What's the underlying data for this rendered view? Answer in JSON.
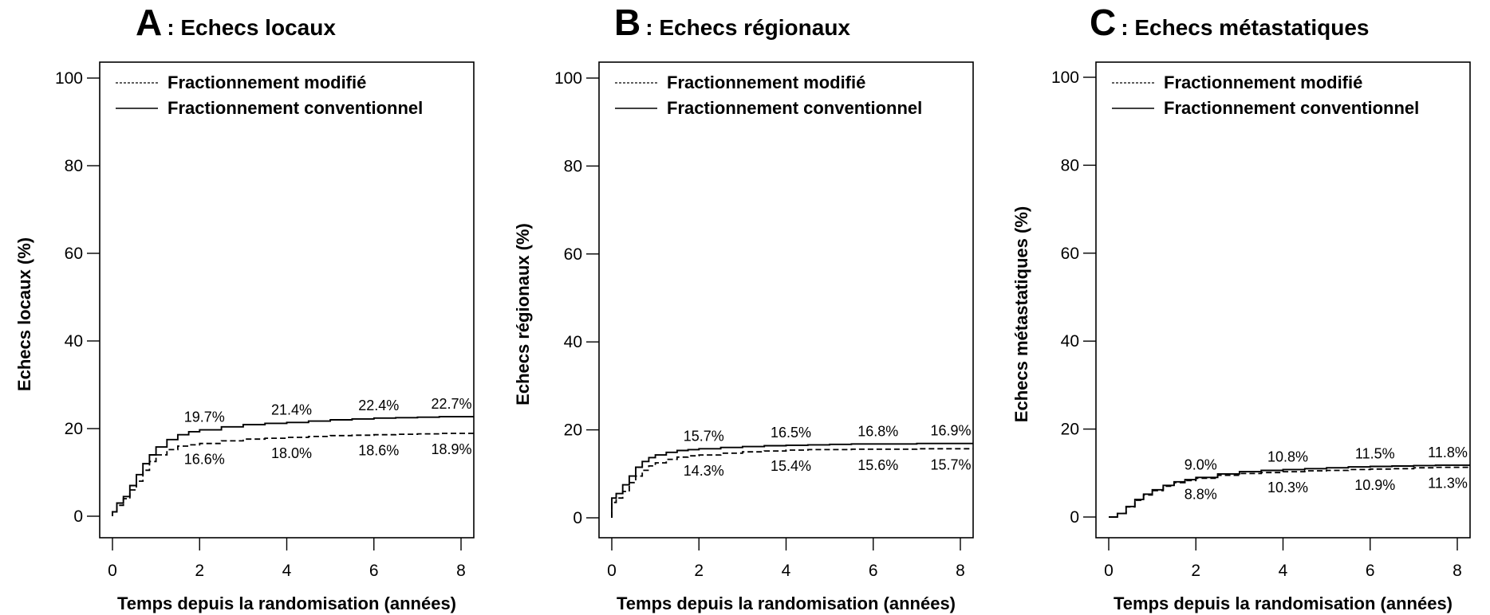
{
  "chart_data": [
    {
      "type": "line",
      "panel_letter": "A",
      "title": ": Echecs locaux",
      "xlabel": "Temps depuis la randomisation (années)",
      "ylabel": "Echecs locaux (%)",
      "xlim": [
        0,
        8
      ],
      "ylim": [
        0,
        100
      ],
      "xticks": [
        "0",
        "2",
        "4",
        "6",
        "8"
      ],
      "yticks": [
        "0",
        "20",
        "40",
        "60",
        "80",
        "100"
      ],
      "legend_position": "top-left",
      "series": [
        {
          "name": "Fractionnement modifié",
          "style": "dashed",
          "x": [
            0,
            0.1,
            0.25,
            0.4,
            0.55,
            0.7,
            0.85,
            1.0,
            1.25,
            1.5,
            1.75,
            2.0,
            2.5,
            3.0,
            3.5,
            4.0,
            4.5,
            5.0,
            5.5,
            6.0,
            6.5,
            7.0,
            7.5,
            8.0,
            8.3
          ],
          "y": [
            1,
            2.5,
            4,
            6,
            8,
            10.5,
            12.5,
            14,
            15.2,
            16,
            16.3,
            16.6,
            17.2,
            17.6,
            17.8,
            18.0,
            18.2,
            18.4,
            18.5,
            18.6,
            18.7,
            18.8,
            18.9,
            18.9,
            18.9
          ]
        },
        {
          "name": "Fractionnement conventionnel",
          "style": "solid",
          "x": [
            0,
            0.1,
            0.25,
            0.4,
            0.55,
            0.7,
            0.85,
            1.0,
            1.25,
            1.5,
            1.75,
            2.0,
            2.5,
            3.0,
            3.5,
            4.0,
            4.5,
            5.0,
            5.5,
            6.0,
            6.5,
            7.0,
            7.5,
            8.0,
            8.3
          ],
          "y": [
            1,
            3,
            4.5,
            7,
            9.5,
            12,
            14,
            15.8,
            17.5,
            18.6,
            19.3,
            19.7,
            20.4,
            20.9,
            21.2,
            21.4,
            21.7,
            22.0,
            22.2,
            22.4,
            22.5,
            22.6,
            22.7,
            22.7,
            22.7
          ]
        }
      ],
      "annotations": [
        {
          "x": 2,
          "series": 1,
          "text": "19.7%"
        },
        {
          "x": 4,
          "series": 1,
          "text": "21.4%"
        },
        {
          "x": 6,
          "series": 1,
          "text": "22.4%"
        },
        {
          "x": 8,
          "series": 1,
          "text": "22.7%"
        },
        {
          "x": 2,
          "series": 0,
          "text": "16.6%"
        },
        {
          "x": 4,
          "series": 0,
          "text": "18.0%"
        },
        {
          "x": 6,
          "series": 0,
          "text": "18.6%"
        },
        {
          "x": 8,
          "series": 0,
          "text": "18.9%"
        }
      ]
    },
    {
      "type": "line",
      "panel_letter": "B",
      "title": ": Echecs régionaux",
      "xlabel": "Temps depuis la randomisation (années)",
      "ylabel": "Echecs régionaux (%)",
      "xlim": [
        0,
        8
      ],
      "ylim": [
        0,
        100
      ],
      "xticks": [
        "0",
        "2",
        "4",
        "6",
        "8"
      ],
      "yticks": [
        "0",
        "20",
        "40",
        "60",
        "80",
        "100"
      ],
      "legend_position": "top-left",
      "series": [
        {
          "name": "Fractionnement modifié",
          "style": "dashed",
          "x": [
            0,
            0.1,
            0.25,
            0.4,
            0.55,
            0.7,
            0.85,
            1.0,
            1.25,
            1.5,
            1.75,
            2.0,
            2.5,
            3.0,
            3.5,
            4.0,
            4.5,
            5.0,
            5.5,
            6.0,
            6.5,
            7.0,
            7.5,
            8.0,
            8.3
          ],
          "y": [
            3.5,
            4.5,
            6,
            8,
            9.5,
            10.8,
            11.8,
            12.5,
            13.3,
            13.8,
            14.1,
            14.3,
            14.7,
            15.0,
            15.2,
            15.4,
            15.5,
            15.5,
            15.6,
            15.6,
            15.6,
            15.7,
            15.7,
            15.7,
            15.7
          ]
        },
        {
          "name": "Fractionnement conventionnel",
          "style": "solid",
          "x": [
            0,
            0.1,
            0.25,
            0.4,
            0.55,
            0.7,
            0.85,
            1.0,
            1.25,
            1.5,
            1.75,
            2.0,
            2.5,
            3.0,
            3.5,
            4.0,
            4.5,
            5.0,
            5.5,
            6.0,
            6.5,
            7.0,
            7.5,
            8.0,
            8.3
          ],
          "y": [
            4.5,
            5.5,
            7.5,
            9.5,
            11.5,
            12.8,
            13.7,
            14.3,
            14.9,
            15.3,
            15.5,
            15.7,
            16.0,
            16.2,
            16.4,
            16.5,
            16.6,
            16.7,
            16.8,
            16.8,
            16.8,
            16.9,
            16.9,
            16.9,
            16.9
          ]
        }
      ],
      "annotations": [
        {
          "x": 2,
          "series": 1,
          "text": "15.7%"
        },
        {
          "x": 4,
          "series": 1,
          "text": "16.5%"
        },
        {
          "x": 6,
          "series": 1,
          "text": "16.8%"
        },
        {
          "x": 8,
          "series": 1,
          "text": "16.9%"
        },
        {
          "x": 2,
          "series": 0,
          "text": "14.3%"
        },
        {
          "x": 4,
          "series": 0,
          "text": "15.4%"
        },
        {
          "x": 6,
          "series": 0,
          "text": "15.6%"
        },
        {
          "x": 8,
          "series": 0,
          "text": "15.7%"
        }
      ]
    },
    {
      "type": "line",
      "panel_letter": "C",
      "title": ": Echecs métastatiques",
      "xlabel": "Temps depuis la randomisation (années)",
      "ylabel": "Echecs métastatiques (%)",
      "xlim": [
        0,
        8
      ],
      "ylim": [
        0,
        100
      ],
      "xticks": [
        "0",
        "2",
        "4",
        "6",
        "8"
      ],
      "yticks": [
        "0",
        "20",
        "40",
        "60",
        "80",
        "100"
      ],
      "legend_position": "top-left",
      "series": [
        {
          "name": "Fractionnement modifié",
          "style": "dashed",
          "x": [
            0,
            0.2,
            0.4,
            0.6,
            0.8,
            1.0,
            1.25,
            1.5,
            1.75,
            2.0,
            2.5,
            3.0,
            3.5,
            4.0,
            4.5,
            5.0,
            5.5,
            6.0,
            6.5,
            7.0,
            7.5,
            8.0,
            8.3
          ],
          "y": [
            0,
            0.8,
            2.3,
            3.8,
            5.0,
            6.0,
            7.0,
            7.8,
            8.3,
            8.8,
            9.5,
            9.9,
            10.1,
            10.3,
            10.5,
            10.6,
            10.8,
            10.9,
            11.0,
            11.2,
            11.3,
            11.3,
            11.3
          ]
        },
        {
          "name": "Fractionnement conventionnel",
          "style": "solid",
          "x": [
            0,
            0.2,
            0.4,
            0.6,
            0.8,
            1.0,
            1.25,
            1.5,
            1.75,
            2.0,
            2.5,
            3.0,
            3.5,
            4.0,
            4.5,
            5.0,
            5.5,
            6.0,
            6.5,
            7.0,
            7.5,
            8.0,
            8.3
          ],
          "y": [
            0,
            0.8,
            2.4,
            4.0,
            5.2,
            6.2,
            7.2,
            8.0,
            8.5,
            9.0,
            9.8,
            10.3,
            10.6,
            10.8,
            11.0,
            11.2,
            11.4,
            11.5,
            11.6,
            11.7,
            11.8,
            11.8,
            11.8
          ]
        }
      ],
      "annotations": [
        {
          "x": 2,
          "series": 0,
          "text": "8.8%"
        },
        {
          "x": 4,
          "series": 0,
          "text": "10.3%"
        },
        {
          "x": 6,
          "series": 0,
          "text": "10.9%"
        },
        {
          "x": 8,
          "series": 0,
          "text": "11.3%"
        },
        {
          "x": 2,
          "series": 1,
          "text": "9.0%"
        },
        {
          "x": 4,
          "series": 1,
          "text": "10.8%"
        },
        {
          "x": 6,
          "series": 1,
          "text": "11.5%"
        },
        {
          "x": 8,
          "series": 1,
          "text": "11.8%"
        }
      ]
    }
  ]
}
